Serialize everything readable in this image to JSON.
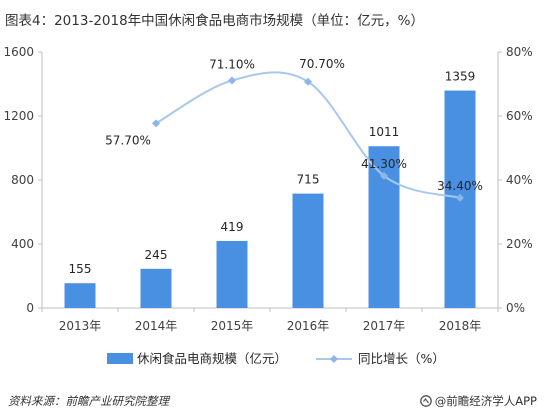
{
  "title": "图表4：2013-2018年中国休闲食品电商市场规模（单位：亿元，%）",
  "source": "资料来源：前瞻产业研究院整理",
  "brand": "@前瞻经济学人APP",
  "colors": {
    "bar": "#4a90e2",
    "line": "#a9c8ee",
    "marker": "#8fb5e8",
    "axis": "#bfbfbf"
  },
  "chart_data": {
    "type": "bar",
    "categories": [
      "2013年",
      "2014年",
      "2015年",
      "2016年",
      "2017年",
      "2018年"
    ],
    "series": [
      {
        "name": "休闲食品电商规模（亿元）",
        "type": "bar",
        "axis": "left",
        "values": [
          155,
          245,
          419,
          715,
          1011,
          1359
        ],
        "labels": [
          "155",
          "245",
          "419",
          "715",
          "1011",
          "1359"
        ]
      },
      {
        "name": "同比增长（%）",
        "type": "line",
        "axis": "right",
        "values": [
          null,
          57.7,
          71.1,
          70.7,
          41.3,
          34.4
        ],
        "labels": [
          "",
          "57.70%",
          "71.10%",
          "70.70%",
          "41.30%",
          "34.40%"
        ]
      }
    ],
    "y_left": {
      "min": 0,
      "max": 1600,
      "ticks": [
        0,
        400,
        800,
        1200,
        1600
      ],
      "tick_labels": [
        "0",
        "400",
        "800",
        "1200",
        "1600"
      ]
    },
    "y_right": {
      "min": 0,
      "max": 80,
      "ticks": [
        0,
        20,
        40,
        60,
        80
      ],
      "tick_labels": [
        "0%",
        "20%",
        "40%",
        "60%",
        "80%"
      ]
    },
    "grid": false,
    "legend": "bottom"
  }
}
